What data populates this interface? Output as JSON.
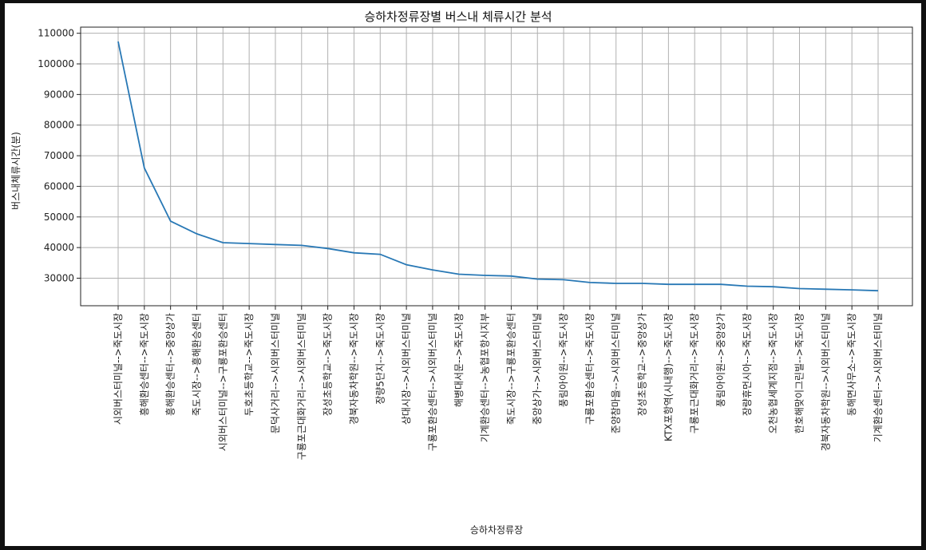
{
  "chart_data": {
    "type": "line",
    "title": "승하차정류장별 버스내 체류시간 분석",
    "xlabel": "승하차정류장",
    "ylabel": "버스내체류시간(분)",
    "ylim": [
      21000,
      112000
    ],
    "yticks": [
      30000,
      40000,
      50000,
      60000,
      70000,
      80000,
      90000,
      100000,
      110000
    ],
    "grid": true,
    "line_color": "#2878b5",
    "categories": [
      "시외버스터미널-->죽도시장",
      "흥해환승센터-->죽도시장",
      "흥해환승센터-->중앙상가",
      "죽도시장-->흥해환승센터",
      "시외버스터미널-->구룡포환승센터",
      "두호초등학교-->죽도시장",
      "문덕사거리-->시외버스터미널",
      "구룡포근대화거리-->시외버스터미널",
      "장성초등학교-->죽도시장",
      "경북자동차학원-->죽도시장",
      "장량5단지-->죽도시장",
      "상대시장-->시외버스터미널",
      "구룡포환승센터-->시외버스터미널",
      "해병대서문-->죽도시장",
      "기계환승센터-->농협포항시지부",
      "죽도시장-->구룡포환승센터",
      "중앙상가-->시외버스터미널",
      "풍림아이원-->죽도시장",
      "구룡포환승센터-->죽도시장",
      "준양참마을-->시외버스터미널",
      "장성초등학교-->중앙상가",
      "KTX포항역(시내행)-->죽도시장",
      "구룡포근대화거리-->죽도시장",
      "풍림아이원-->중앙상가",
      "장량휴먼시아-->죽도시장",
      "오천농협세계지점-->죽도시장",
      "한호해맞이그린빌-->죽도시장",
      "경북자동차학원-->시외버스터미널",
      "동해면사무소-->죽도시장",
      "기계환승센터-->시외버스터미널"
    ],
    "values": [
      107300,
      66000,
      48600,
      44500,
      41600,
      41300,
      41000,
      40700,
      39700,
      38300,
      37800,
      34400,
      32700,
      31300,
      30900,
      30700,
      29700,
      29500,
      28600,
      28300,
      28300,
      28000,
      28000,
      28000,
      27400,
      27200,
      26600,
      26400,
      26200,
      25900
    ]
  }
}
